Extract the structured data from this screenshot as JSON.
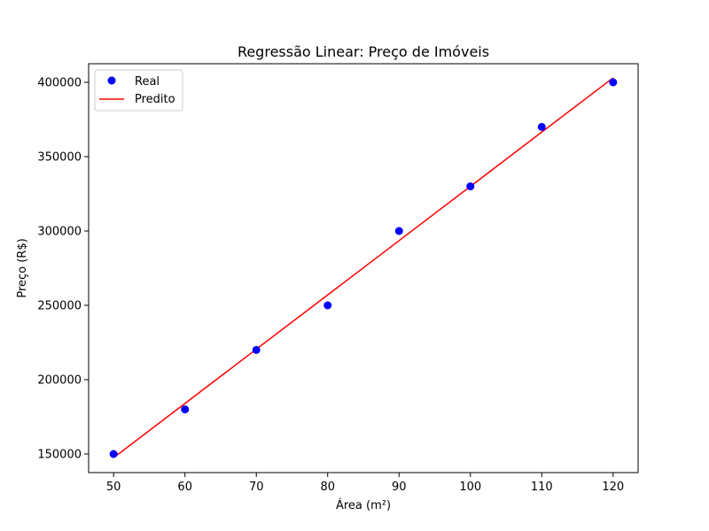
{
  "chart_data": {
    "type": "scatter",
    "title": "Regressão Linear: Preço de Imóveis",
    "xlabel": "Área (m²)",
    "ylabel": "Preço (R$)",
    "xlim": [
      46.5,
      123.5
    ],
    "ylim": [
      137500,
      412500
    ],
    "xticks": [
      50,
      60,
      70,
      80,
      90,
      100,
      110,
      120
    ],
    "yticks": [
      150000,
      200000,
      250000,
      300000,
      350000,
      400000
    ],
    "grid": false,
    "legend_position": "top-left",
    "series": [
      {
        "name": "Real",
        "kind": "scatter",
        "color": "#0000ff",
        "x": [
          50,
          60,
          70,
          80,
          90,
          100,
          110,
          120
        ],
        "y": [
          150000,
          180000,
          220000,
          250000,
          300000,
          330000,
          370000,
          400000
        ]
      },
      {
        "name": "Predito",
        "kind": "line",
        "color": "#ff0000",
        "x": [
          50,
          60,
          70,
          80,
          90,
          100,
          110,
          120
        ],
        "y": [
          147500,
          184000,
          220500,
          257000,
          293500,
          330000,
          366500,
          403000
        ]
      }
    ]
  }
}
